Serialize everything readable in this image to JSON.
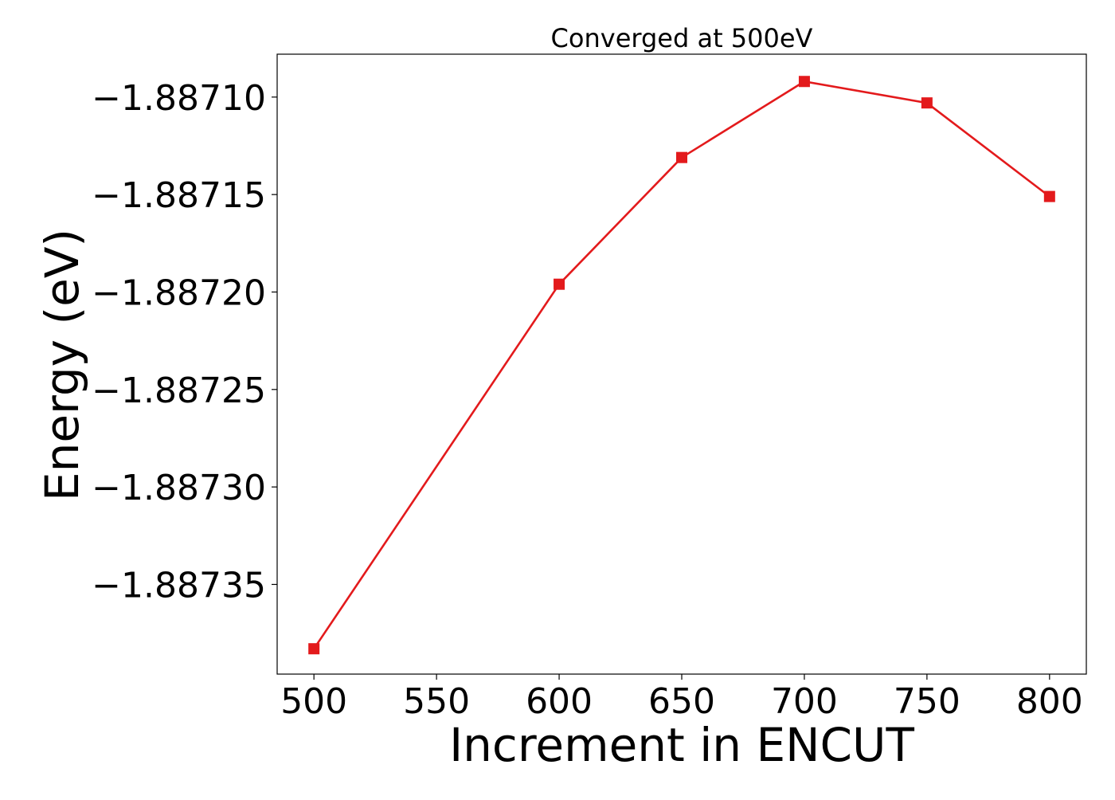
{
  "chart_data": {
    "type": "line",
    "title": "Converged at 500eV",
    "xlabel": "Increment in ENCUT",
    "ylabel": "Energy (eV)",
    "x": [
      500,
      600,
      650,
      700,
      750,
      800
    ],
    "series": [
      {
        "values": [
          -1.887383,
          -1.887196,
          -1.887131,
          -1.887092,
          -1.887103,
          -1.887151
        ],
        "color": "#e31a1c",
        "marker": "square"
      }
    ],
    "xticks": [
      500,
      550,
      600,
      650,
      700,
      750,
      800
    ],
    "xtick_labels": [
      "500",
      "550",
      "600",
      "650",
      "700",
      "750",
      "800"
    ],
    "yticks": [
      -1.8871,
      -1.88715,
      -1.8872,
      -1.88725,
      -1.8873,
      -1.88735
    ],
    "ytick_labels": [
      "−1.88710",
      "−1.88715",
      "−1.88720",
      "−1.88725",
      "−1.88730",
      "−1.88735"
    ],
    "xlim": [
      485,
      815
    ],
    "ylim": [
      -1.887396,
      -1.887078
    ],
    "grid": false,
    "legend": "none"
  }
}
